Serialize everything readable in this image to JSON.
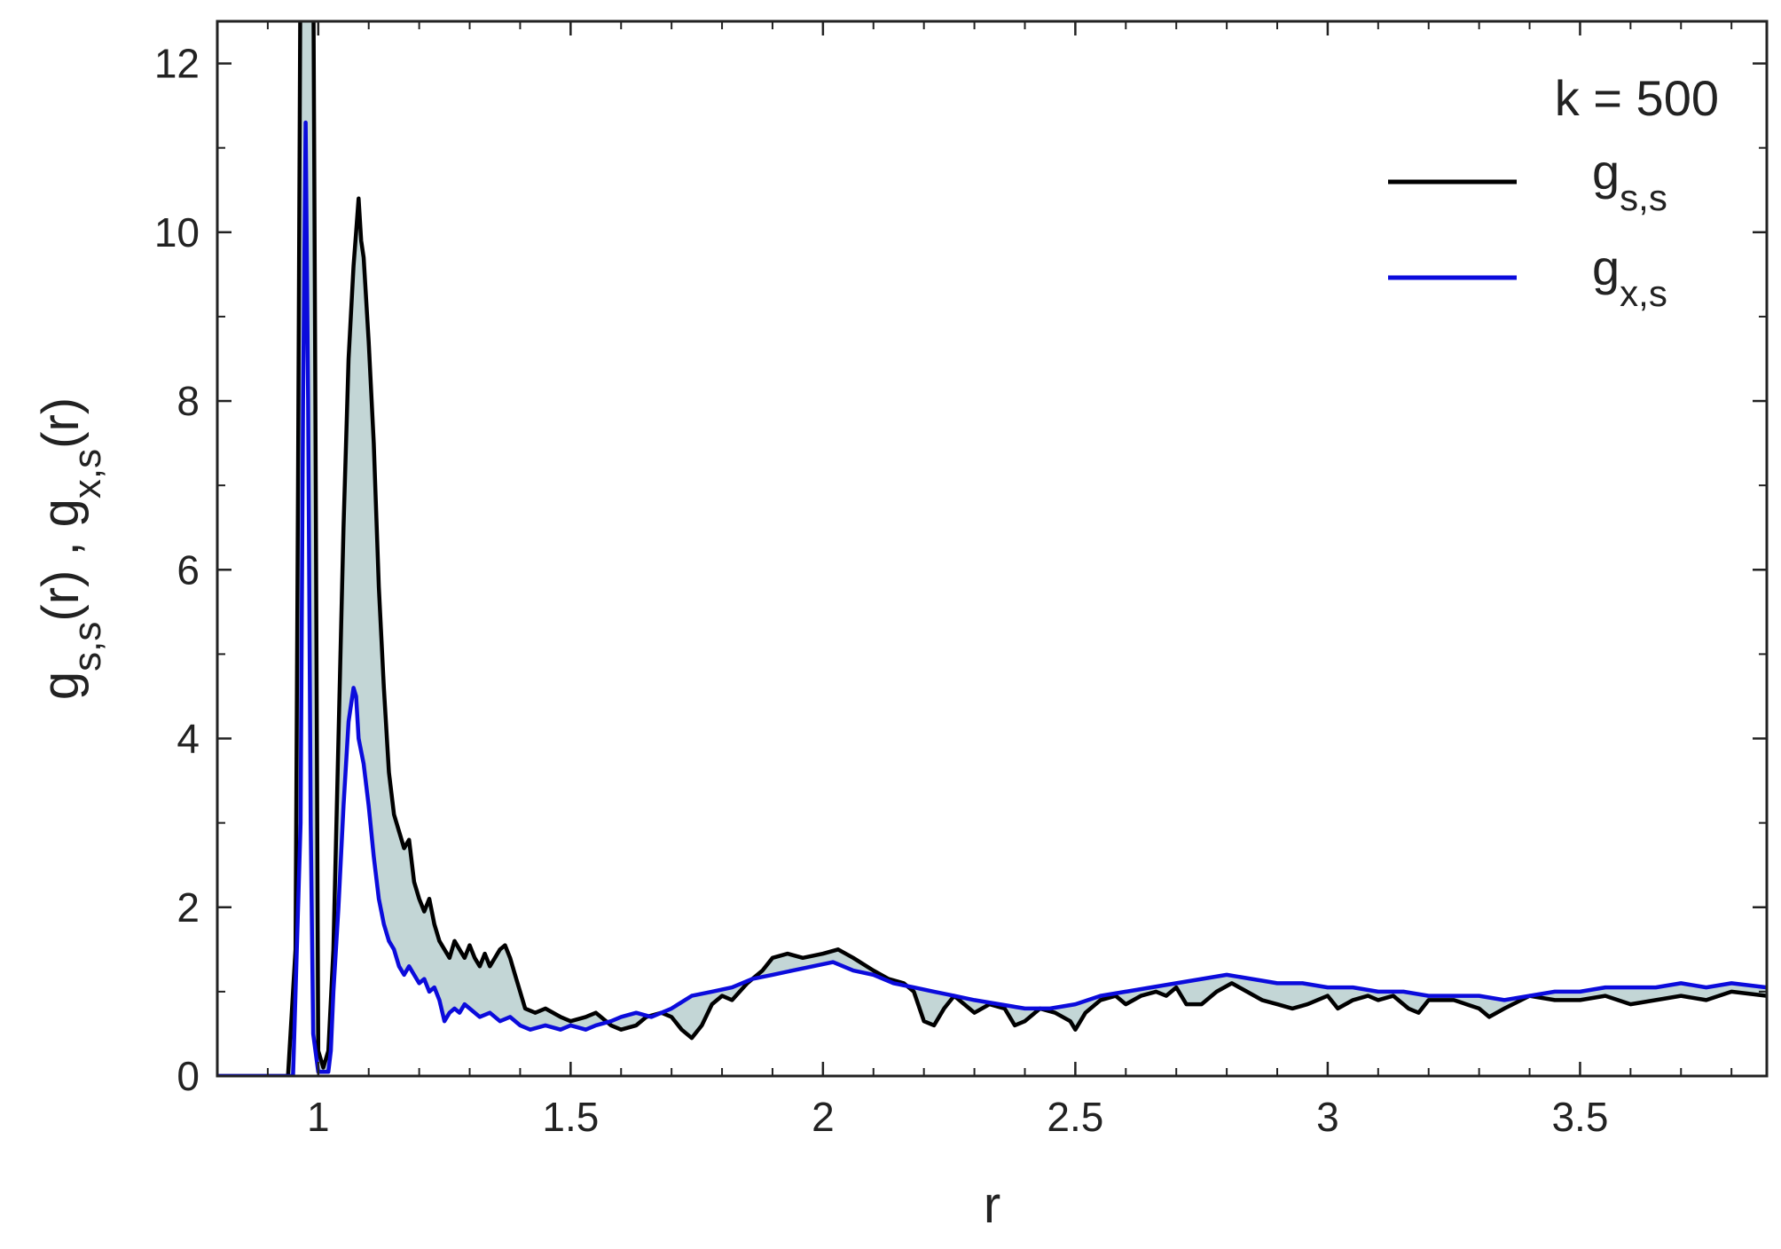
{
  "chart_data": {
    "type": "line",
    "xlabel": "r",
    "ylabel_parts": [
      "g",
      "s,s",
      "(r) , g",
      "x,s",
      "(r)"
    ],
    "xlim": [
      0.8,
      3.87
    ],
    "ylim": [
      0,
      12.5
    ],
    "xticks": [
      1,
      1.5,
      2,
      2.5,
      3,
      3.5
    ],
    "xtick_labels": [
      "1",
      "1.5",
      "2",
      "2.5",
      "3",
      "3.5"
    ],
    "yticks": [
      0,
      2,
      4,
      6,
      8,
      10,
      12
    ],
    "ytick_labels": [
      "0",
      "2",
      "4",
      "6",
      "8",
      "10",
      "12"
    ],
    "legend_title": "k = 500",
    "legend_position": "top-right",
    "grid": false,
    "fill_between_color": "#c3d6d6",
    "series": [
      {
        "name": "g",
        "name_sub": "s,s",
        "color": "#000000",
        "points": [
          [
            0.8,
            0
          ],
          [
            0.94,
            0
          ],
          [
            0.955,
            1.5
          ],
          [
            0.96,
            7
          ],
          [
            0.965,
            13.5
          ],
          [
            0.99,
            13.5
          ],
          [
            0.995,
            7
          ],
          [
            1.0,
            0.3
          ],
          [
            1.01,
            0.1
          ],
          [
            1.02,
            0.3
          ],
          [
            1.03,
            1.5
          ],
          [
            1.04,
            4
          ],
          [
            1.05,
            6.5
          ],
          [
            1.06,
            8.5
          ],
          [
            1.07,
            9.6
          ],
          [
            1.075,
            10
          ],
          [
            1.08,
            10.4
          ],
          [
            1.085,
            9.9
          ],
          [
            1.09,
            9.7
          ],
          [
            1.1,
            8.7
          ],
          [
            1.11,
            7.5
          ],
          [
            1.12,
            5.8
          ],
          [
            1.13,
            4.6
          ],
          [
            1.14,
            3.6
          ],
          [
            1.15,
            3.1
          ],
          [
            1.16,
            2.9
          ],
          [
            1.17,
            2.7
          ],
          [
            1.18,
            2.8
          ],
          [
            1.19,
            2.3
          ],
          [
            1.2,
            2.1
          ],
          [
            1.21,
            1.95
          ],
          [
            1.22,
            2.1
          ],
          [
            1.23,
            1.8
          ],
          [
            1.24,
            1.6
          ],
          [
            1.25,
            1.5
          ],
          [
            1.26,
            1.4
          ],
          [
            1.27,
            1.6
          ],
          [
            1.28,
            1.5
          ],
          [
            1.29,
            1.4
          ],
          [
            1.3,
            1.55
          ],
          [
            1.31,
            1.4
          ],
          [
            1.32,
            1.3
          ],
          [
            1.33,
            1.45
          ],
          [
            1.34,
            1.3
          ],
          [
            1.35,
            1.4
          ],
          [
            1.36,
            1.5
          ],
          [
            1.37,
            1.55
          ],
          [
            1.38,
            1.4
          ],
          [
            1.39,
            1.2
          ],
          [
            1.4,
            1.0
          ],
          [
            1.41,
            0.8
          ],
          [
            1.43,
            0.75
          ],
          [
            1.45,
            0.8
          ],
          [
            1.48,
            0.7
          ],
          [
            1.5,
            0.65
          ],
          [
            1.53,
            0.7
          ],
          [
            1.55,
            0.75
          ],
          [
            1.58,
            0.6
          ],
          [
            1.6,
            0.55
          ],
          [
            1.63,
            0.6
          ],
          [
            1.65,
            0.7
          ],
          [
            1.68,
            0.75
          ],
          [
            1.7,
            0.7
          ],
          [
            1.72,
            0.55
          ],
          [
            1.74,
            0.45
          ],
          [
            1.76,
            0.6
          ],
          [
            1.78,
            0.85
          ],
          [
            1.8,
            0.95
          ],
          [
            1.82,
            0.9
          ],
          [
            1.85,
            1.1
          ],
          [
            1.88,
            1.25
          ],
          [
            1.9,
            1.4
          ],
          [
            1.93,
            1.45
          ],
          [
            1.96,
            1.4
          ],
          [
            2.0,
            1.45
          ],
          [
            2.03,
            1.5
          ],
          [
            2.06,
            1.4
          ],
          [
            2.1,
            1.25
          ],
          [
            2.13,
            1.15
          ],
          [
            2.16,
            1.1
          ],
          [
            2.18,
            1.0
          ],
          [
            2.2,
            0.65
          ],
          [
            2.22,
            0.6
          ],
          [
            2.24,
            0.8
          ],
          [
            2.26,
            0.95
          ],
          [
            2.28,
            0.85
          ],
          [
            2.3,
            0.75
          ],
          [
            2.33,
            0.85
          ],
          [
            2.36,
            0.8
          ],
          [
            2.38,
            0.6
          ],
          [
            2.4,
            0.65
          ],
          [
            2.43,
            0.8
          ],
          [
            2.46,
            0.75
          ],
          [
            2.49,
            0.65
          ],
          [
            2.5,
            0.55
          ],
          [
            2.52,
            0.75
          ],
          [
            2.55,
            0.9
          ],
          [
            2.58,
            0.95
          ],
          [
            2.6,
            0.85
          ],
          [
            2.63,
            0.95
          ],
          [
            2.66,
            1.0
          ],
          [
            2.68,
            0.95
          ],
          [
            2.7,
            1.05
          ],
          [
            2.72,
            0.85
          ],
          [
            2.75,
            0.85
          ],
          [
            2.78,
            1.0
          ],
          [
            2.81,
            1.1
          ],
          [
            2.84,
            1.0
          ],
          [
            2.87,
            0.9
          ],
          [
            2.9,
            0.85
          ],
          [
            2.93,
            0.8
          ],
          [
            2.96,
            0.85
          ],
          [
            3.0,
            0.95
          ],
          [
            3.02,
            0.8
          ],
          [
            3.05,
            0.9
          ],
          [
            3.08,
            0.95
          ],
          [
            3.1,
            0.9
          ],
          [
            3.13,
            0.95
          ],
          [
            3.16,
            0.8
          ],
          [
            3.18,
            0.75
          ],
          [
            3.2,
            0.9
          ],
          [
            3.25,
            0.9
          ],
          [
            3.3,
            0.8
          ],
          [
            3.32,
            0.7
          ],
          [
            3.35,
            0.8
          ],
          [
            3.4,
            0.95
          ],
          [
            3.45,
            0.9
          ],
          [
            3.5,
            0.9
          ],
          [
            3.55,
            0.95
          ],
          [
            3.6,
            0.85
          ],
          [
            3.65,
            0.9
          ],
          [
            3.7,
            0.95
          ],
          [
            3.75,
            0.9
          ],
          [
            3.8,
            1.0
          ],
          [
            3.87,
            0.95
          ]
        ]
      },
      {
        "name": "g",
        "name_sub": "x,s",
        "color": "#0b0bdc",
        "points": [
          [
            0.8,
            0
          ],
          [
            0.95,
            0
          ],
          [
            0.965,
            3
          ],
          [
            0.97,
            8
          ],
          [
            0.975,
            11.3
          ],
          [
            0.98,
            8
          ],
          [
            0.985,
            3
          ],
          [
            0.99,
            0.5
          ],
          [
            1.0,
            0.05
          ],
          [
            1.02,
            0.05
          ],
          [
            1.025,
            0.3
          ],
          [
            1.03,
            1
          ],
          [
            1.04,
            2
          ],
          [
            1.05,
            3.2
          ],
          [
            1.06,
            4.2
          ],
          [
            1.07,
            4.6
          ],
          [
            1.075,
            4.5
          ],
          [
            1.08,
            4.0
          ],
          [
            1.09,
            3.7
          ],
          [
            1.1,
            3.2
          ],
          [
            1.11,
            2.6
          ],
          [
            1.12,
            2.1
          ],
          [
            1.13,
            1.8
          ],
          [
            1.14,
            1.6
          ],
          [
            1.15,
            1.5
          ],
          [
            1.16,
            1.3
          ],
          [
            1.17,
            1.2
          ],
          [
            1.18,
            1.3
          ],
          [
            1.19,
            1.2
          ],
          [
            1.2,
            1.1
          ],
          [
            1.21,
            1.15
          ],
          [
            1.22,
            1.0
          ],
          [
            1.23,
            1.05
          ],
          [
            1.24,
            0.9
          ],
          [
            1.25,
            0.65
          ],
          [
            1.26,
            0.75
          ],
          [
            1.27,
            0.8
          ],
          [
            1.28,
            0.75
          ],
          [
            1.29,
            0.85
          ],
          [
            1.3,
            0.8
          ],
          [
            1.32,
            0.7
          ],
          [
            1.34,
            0.75
          ],
          [
            1.36,
            0.65
          ],
          [
            1.38,
            0.7
          ],
          [
            1.4,
            0.6
          ],
          [
            1.42,
            0.55
          ],
          [
            1.45,
            0.6
          ],
          [
            1.48,
            0.55
          ],
          [
            1.5,
            0.6
          ],
          [
            1.53,
            0.55
          ],
          [
            1.55,
            0.6
          ],
          [
            1.58,
            0.65
          ],
          [
            1.6,
            0.7
          ],
          [
            1.63,
            0.75
          ],
          [
            1.66,
            0.7
          ],
          [
            1.7,
            0.8
          ],
          [
            1.74,
            0.95
          ],
          [
            1.78,
            1.0
          ],
          [
            1.82,
            1.05
          ],
          [
            1.86,
            1.15
          ],
          [
            1.9,
            1.2
          ],
          [
            1.94,
            1.25
          ],
          [
            1.98,
            1.3
          ],
          [
            2.02,
            1.35
          ],
          [
            2.06,
            1.25
          ],
          [
            2.1,
            1.2
          ],
          [
            2.14,
            1.1
          ],
          [
            2.18,
            1.05
          ],
          [
            2.22,
            1.0
          ],
          [
            2.26,
            0.95
          ],
          [
            2.3,
            0.9
          ],
          [
            2.35,
            0.85
          ],
          [
            2.4,
            0.8
          ],
          [
            2.45,
            0.8
          ],
          [
            2.5,
            0.85
          ],
          [
            2.55,
            0.95
          ],
          [
            2.6,
            1.0
          ],
          [
            2.65,
            1.05
          ],
          [
            2.7,
            1.1
          ],
          [
            2.75,
            1.15
          ],
          [
            2.8,
            1.2
          ],
          [
            2.85,
            1.15
          ],
          [
            2.9,
            1.1
          ],
          [
            2.95,
            1.1
          ],
          [
            3.0,
            1.05
          ],
          [
            3.05,
            1.05
          ],
          [
            3.1,
            1.0
          ],
          [
            3.15,
            1.0
          ],
          [
            3.2,
            0.95
          ],
          [
            3.25,
            0.95
          ],
          [
            3.3,
            0.95
          ],
          [
            3.35,
            0.9
          ],
          [
            3.4,
            0.95
          ],
          [
            3.45,
            1.0
          ],
          [
            3.5,
            1.0
          ],
          [
            3.55,
            1.05
          ],
          [
            3.6,
            1.05
          ],
          [
            3.65,
            1.05
          ],
          [
            3.7,
            1.1
          ],
          [
            3.75,
            1.05
          ],
          [
            3.8,
            1.1
          ],
          [
            3.87,
            1.05
          ]
        ]
      }
    ]
  }
}
